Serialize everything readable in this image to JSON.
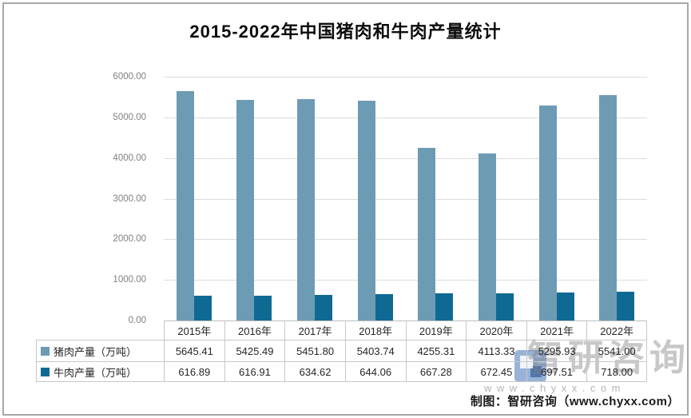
{
  "title": "2015-2022年中国猪肉和牛肉产量统计",
  "chart_data": {
    "type": "bar",
    "categories": [
      "2015年",
      "2016年",
      "2017年",
      "2018年",
      "2019年",
      "2020年",
      "2021年",
      "2022年"
    ],
    "series": [
      {
        "name": "猪肉产量（万吨）",
        "values": [
          5645.41,
          5425.49,
          5451.8,
          5403.74,
          4255.31,
          4113.33,
          5295.93,
          5541.0
        ],
        "display": [
          "5645.41",
          "5425.49",
          "5451.80",
          "5403.74",
          "4255.31",
          "4113.33",
          "5295.93",
          "5541.00"
        ],
        "color": "#6E9BB4"
      },
      {
        "name": "牛肉产量（万吨）",
        "values": [
          616.89,
          616.91,
          634.62,
          644.06,
          667.28,
          672.45,
          697.51,
          718.0
        ],
        "display": [
          "616.89",
          "616.91",
          "634.62",
          "644.06",
          "667.28",
          "672.45",
          "697.51",
          "718.00"
        ],
        "color": "#0F6A93"
      }
    ],
    "ylim": [
      0,
      6000
    ],
    "ytick_step": 1000,
    "ytick_labels": [
      "0.00",
      "1000.00",
      "2000.00",
      "3000.00",
      "4000.00",
      "5000.00",
      "6000.00"
    ],
    "grid": true,
    "legend_position": "data-table-left",
    "xlabel": "",
    "ylabel": ""
  },
  "footer": {
    "credit": "制图：智研咨询（www.chyxx.com）"
  },
  "watermark": {
    "brand": "智研咨询",
    "url": "www.chyxx.com",
    "logo": "chyxx-logo"
  },
  "colors": {
    "pork_bar": "#6E9BB4",
    "beef_bar": "#0F6A93",
    "frame_border": "#A8A8A8"
  }
}
